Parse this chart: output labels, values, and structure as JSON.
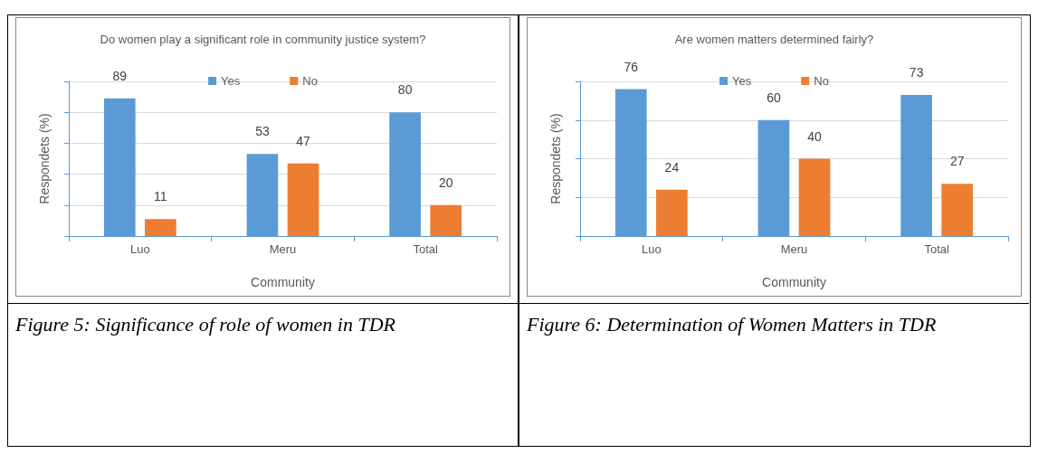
{
  "chart_data": [
    {
      "type": "bar",
      "title": "Do women play a significant role in community justice system?",
      "xlabel": "Community",
      "ylabel": "Respondets (%)",
      "categories": [
        "Luo",
        "Meru",
        "Total"
      ],
      "series": [
        {
          "name": "Yes",
          "color": "#5b9bd5",
          "values": [
            89,
            53,
            80
          ]
        },
        {
          "name": "No",
          "color": "#ed7d31",
          "values": [
            11,
            47,
            20
          ]
        }
      ],
      "ylim": [
        0,
        100
      ],
      "yticks": [
        {
          "value": 0,
          "label": null
        },
        {
          "value": 20,
          "label": null
        },
        {
          "value": 40,
          "label": null
        },
        {
          "value": 60,
          "label": null
        },
        {
          "value": 80,
          "label": null
        },
        {
          "value": 100,
          "label": null
        }
      ],
      "tick_labels": "x",
      "grid": "y",
      "legend": "top",
      "data_labels": true,
      "annotations": [
        "Figure 5: Significance of role of women in TDR"
      ]
    },
    {
      "type": "bar",
      "title": "Are women matters determined fairly?",
      "xlabel": "Community",
      "ylabel": "Respondets (%)",
      "categories": [
        "Luo",
        "Meru",
        "Total"
      ],
      "series": [
        {
          "name": "Yes",
          "color": "#5b9bd5",
          "values": [
            76,
            60,
            73
          ]
        },
        {
          "name": "No",
          "color": "#ed7d31",
          "values": [
            24,
            40,
            27
          ]
        }
      ],
      "ylim": [
        0,
        80
      ],
      "yticks": [
        {
          "value": 0,
          "label": null
        },
        {
          "value": 20,
          "label": null
        },
        {
          "value": 40,
          "label": null
        },
        {
          "value": 60,
          "label": null
        },
        {
          "value": 80,
          "label": null
        }
      ],
      "tick_labels": "x",
      "grid": "y",
      "legend": "top",
      "data_labels": true,
      "annotations": [
        "Figure 6: Determination of Women Matters in TDR"
      ]
    }
  ]
}
